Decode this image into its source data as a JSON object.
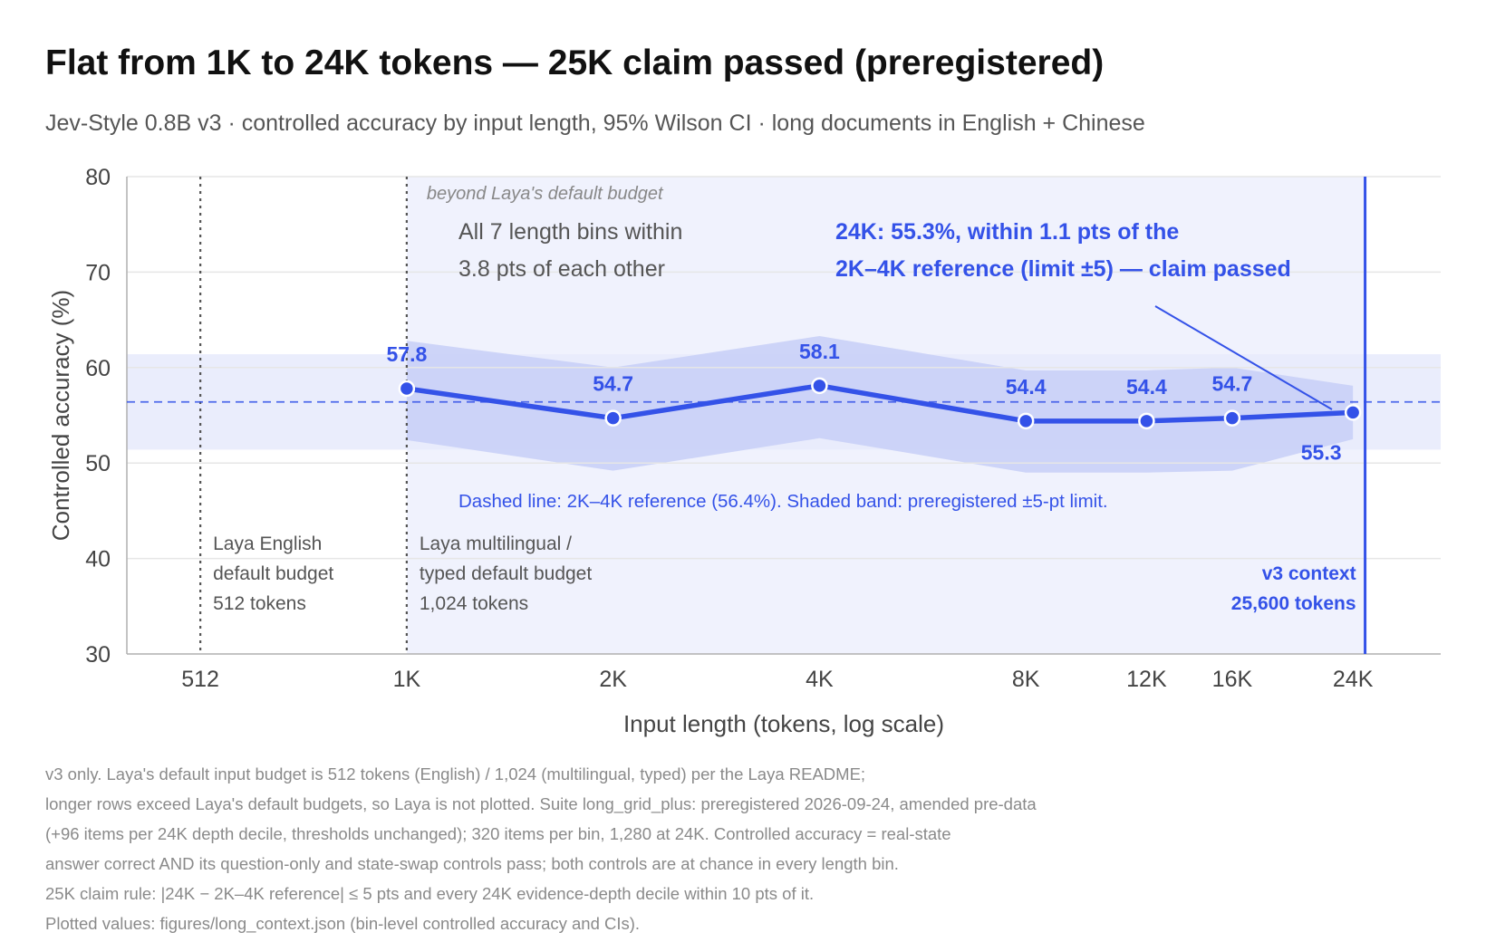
{
  "title": "Flat from 1K to 24K tokens — 25K claim passed (preregistered)",
  "subtitle": "Jev-Style 0.8B v3 · controlled accuracy by input length, 95% Wilson CI · long documents in English + Chinese",
  "colors": {
    "accent": "#3452e8",
    "ci_band": "#c7cff7",
    "limit_band": "#e8ebfc",
    "beyond_region": "#f0f2fd",
    "grid": "#e6e6e6",
    "axis": "#b0b0b0",
    "budget_line": "#555555"
  },
  "chart_data": {
    "type": "line",
    "xlabel": "Input length (tokens, log scale)",
    "ylabel": "Controlled accuracy (%)",
    "x_scale": "log",
    "xlim": [
      400,
      33000
    ],
    "ylim": [
      30,
      80
    ],
    "yticks": [
      30,
      40,
      50,
      60,
      70,
      80
    ],
    "xticks": [
      {
        "value": 512,
        "label": "512"
      },
      {
        "value": 1024,
        "label": "1K"
      },
      {
        "value": 2048,
        "label": "2K"
      },
      {
        "value": 4096,
        "label": "4K"
      },
      {
        "value": 8192,
        "label": "8K"
      },
      {
        "value": 12288,
        "label": "12K"
      },
      {
        "value": 16384,
        "label": "16K"
      },
      {
        "value": 24576,
        "label": "24K"
      }
    ],
    "grid": true,
    "series": [
      {
        "points": [
          {
            "x": 1024,
            "y": 57.8,
            "label": "57.8",
            "ci": [
              52.4,
              62.8
            ]
          },
          {
            "x": 2048,
            "y": 54.7,
            "label": "54.7",
            "ci": [
              49.2,
              60.0
            ]
          },
          {
            "x": 4096,
            "y": 58.1,
            "label": "58.1",
            "ci": [
              52.6,
              63.3
            ]
          },
          {
            "x": 8192,
            "y": 54.4,
            "label": "54.4",
            "ci": [
              49.0,
              59.7
            ]
          },
          {
            "x": 12288,
            "y": 54.4,
            "label": "54.4",
            "ci": [
              49.0,
              59.7
            ]
          },
          {
            "x": 16384,
            "y": 54.7,
            "label": "54.7",
            "ci": [
              49.2,
              60.0
            ]
          },
          {
            "x": 24576,
            "y": 55.3,
            "label": "55.3",
            "ci": [
              52.5,
              58.1
            ]
          }
        ]
      }
    ],
    "reference": {
      "value": 56.4,
      "band": [
        51.4,
        61.4
      ]
    },
    "beyond_region_from": 1024,
    "context_limit": 25600,
    "budget_lines": [
      512,
      1024
    ]
  },
  "annotations": {
    "beyond_region_label": "beyond Laya's default budget",
    "bins_note": [
      "All 7 length bins within",
      "3.8 pts of each other"
    ],
    "claim_note": [
      "24K: 55.3%, within 1.1 pts of the",
      "2K–4K reference (limit ±5) — claim passed"
    ],
    "reference_note": "Dashed line: 2K–4K reference (56.4%). Shaded band: preregistered ±5-pt limit.",
    "english_budget": [
      "Laya English",
      "default budget",
      "512 tokens"
    ],
    "multilingual_budget": [
      "Laya multilingual /",
      "typed default budget",
      "1,024 tokens"
    ],
    "context_label": [
      "v3 context",
      "25,600 tokens"
    ]
  },
  "footnotes": [
    "v3 only. Laya's default input budget is 512 tokens (English) / 1,024 (multilingual, typed) per the Laya README;",
    "longer rows exceed Laya's default budgets, so Laya is not plotted. Suite long_grid_plus: preregistered 2026-09-24, amended pre-data",
    "(+96 items per 24K depth decile, thresholds unchanged); 320 items per bin, 1,280 at 24K. Controlled accuracy = real-state",
    "answer correct AND its question-only and state-swap controls pass; both controls are at chance in every length bin.",
    "25K claim rule: |24K − 2K–4K reference| ≤ 5 pts and every 24K evidence-depth decile within 10 pts of it.",
    "Plotted values: figures/long_context.json (bin-level controlled accuracy and CIs)."
  ]
}
